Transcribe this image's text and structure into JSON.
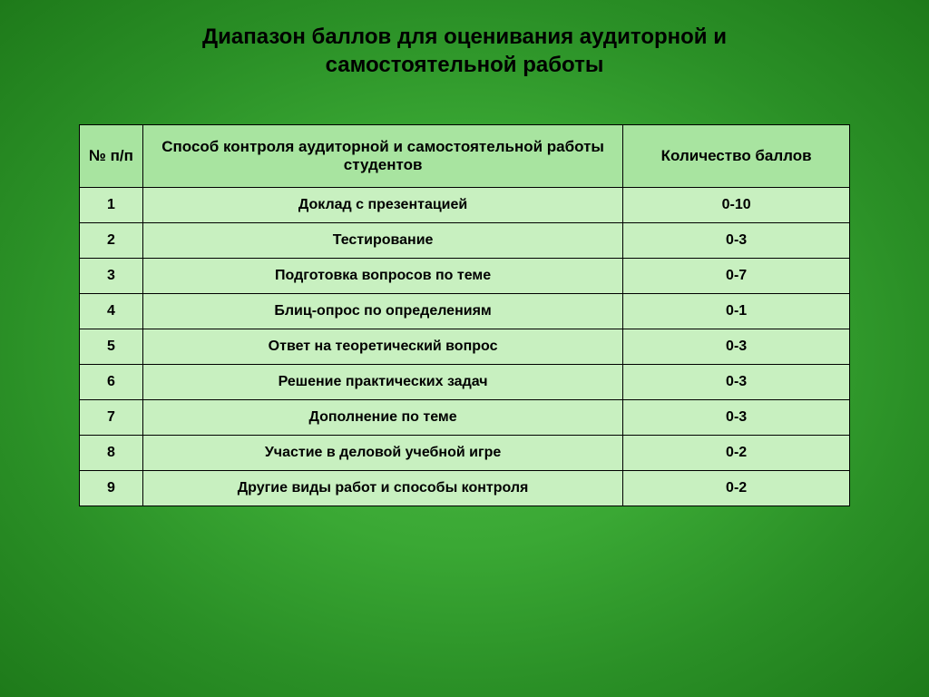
{
  "title": "Диапазон баллов для оценивания аудиторной и самостоятельной работы",
  "table": {
    "headers": {
      "num": "№ п/п",
      "method": "Способ контроля аудиторной и самостоятельной   работы студентов",
      "score": "Количество баллов"
    },
    "rows": [
      {
        "num": "1",
        "method": "Доклад с презентацией",
        "score": "0-10"
      },
      {
        "num": "2",
        "method": "Тестирование",
        "score": "0-3"
      },
      {
        "num": "3",
        "method": "Подготовка вопросов по теме",
        "score": "0-7"
      },
      {
        "num": "4",
        "method": "Блиц-опрос по определениям",
        "score": "0-1"
      },
      {
        "num": "5",
        "method": "Ответ на теоретический вопрос",
        "score": "0-3"
      },
      {
        "num": "6",
        "method": "Решение практических задач",
        "score": "0-3"
      },
      {
        "num": "7",
        "method": "Дополнение по теме",
        "score": "0-3"
      },
      {
        "num": "8",
        "method": "Участие в деловой учебной игре",
        "score": "0-2"
      },
      {
        "num": "9",
        "method": "Другие виды работ и способы контроля",
        "score": "0-2"
      }
    ],
    "styling": {
      "header_bg": "#a8e4a0",
      "cell_bg": "#c8f0c0",
      "border_color": "#000000",
      "header_fontsize": 17,
      "cell_fontsize": 16,
      "col_widths": {
        "num": 70,
        "method": 530,
        "score": 250
      }
    }
  },
  "background": {
    "gradient_center": "#4db847",
    "gradient_mid": "#3aa834",
    "gradient_outer": "#2a8f26",
    "gradient_edge": "#1e7a1a"
  },
  "title_styling": {
    "fontsize": 24,
    "fontweight": "bold",
    "color": "#000000"
  }
}
